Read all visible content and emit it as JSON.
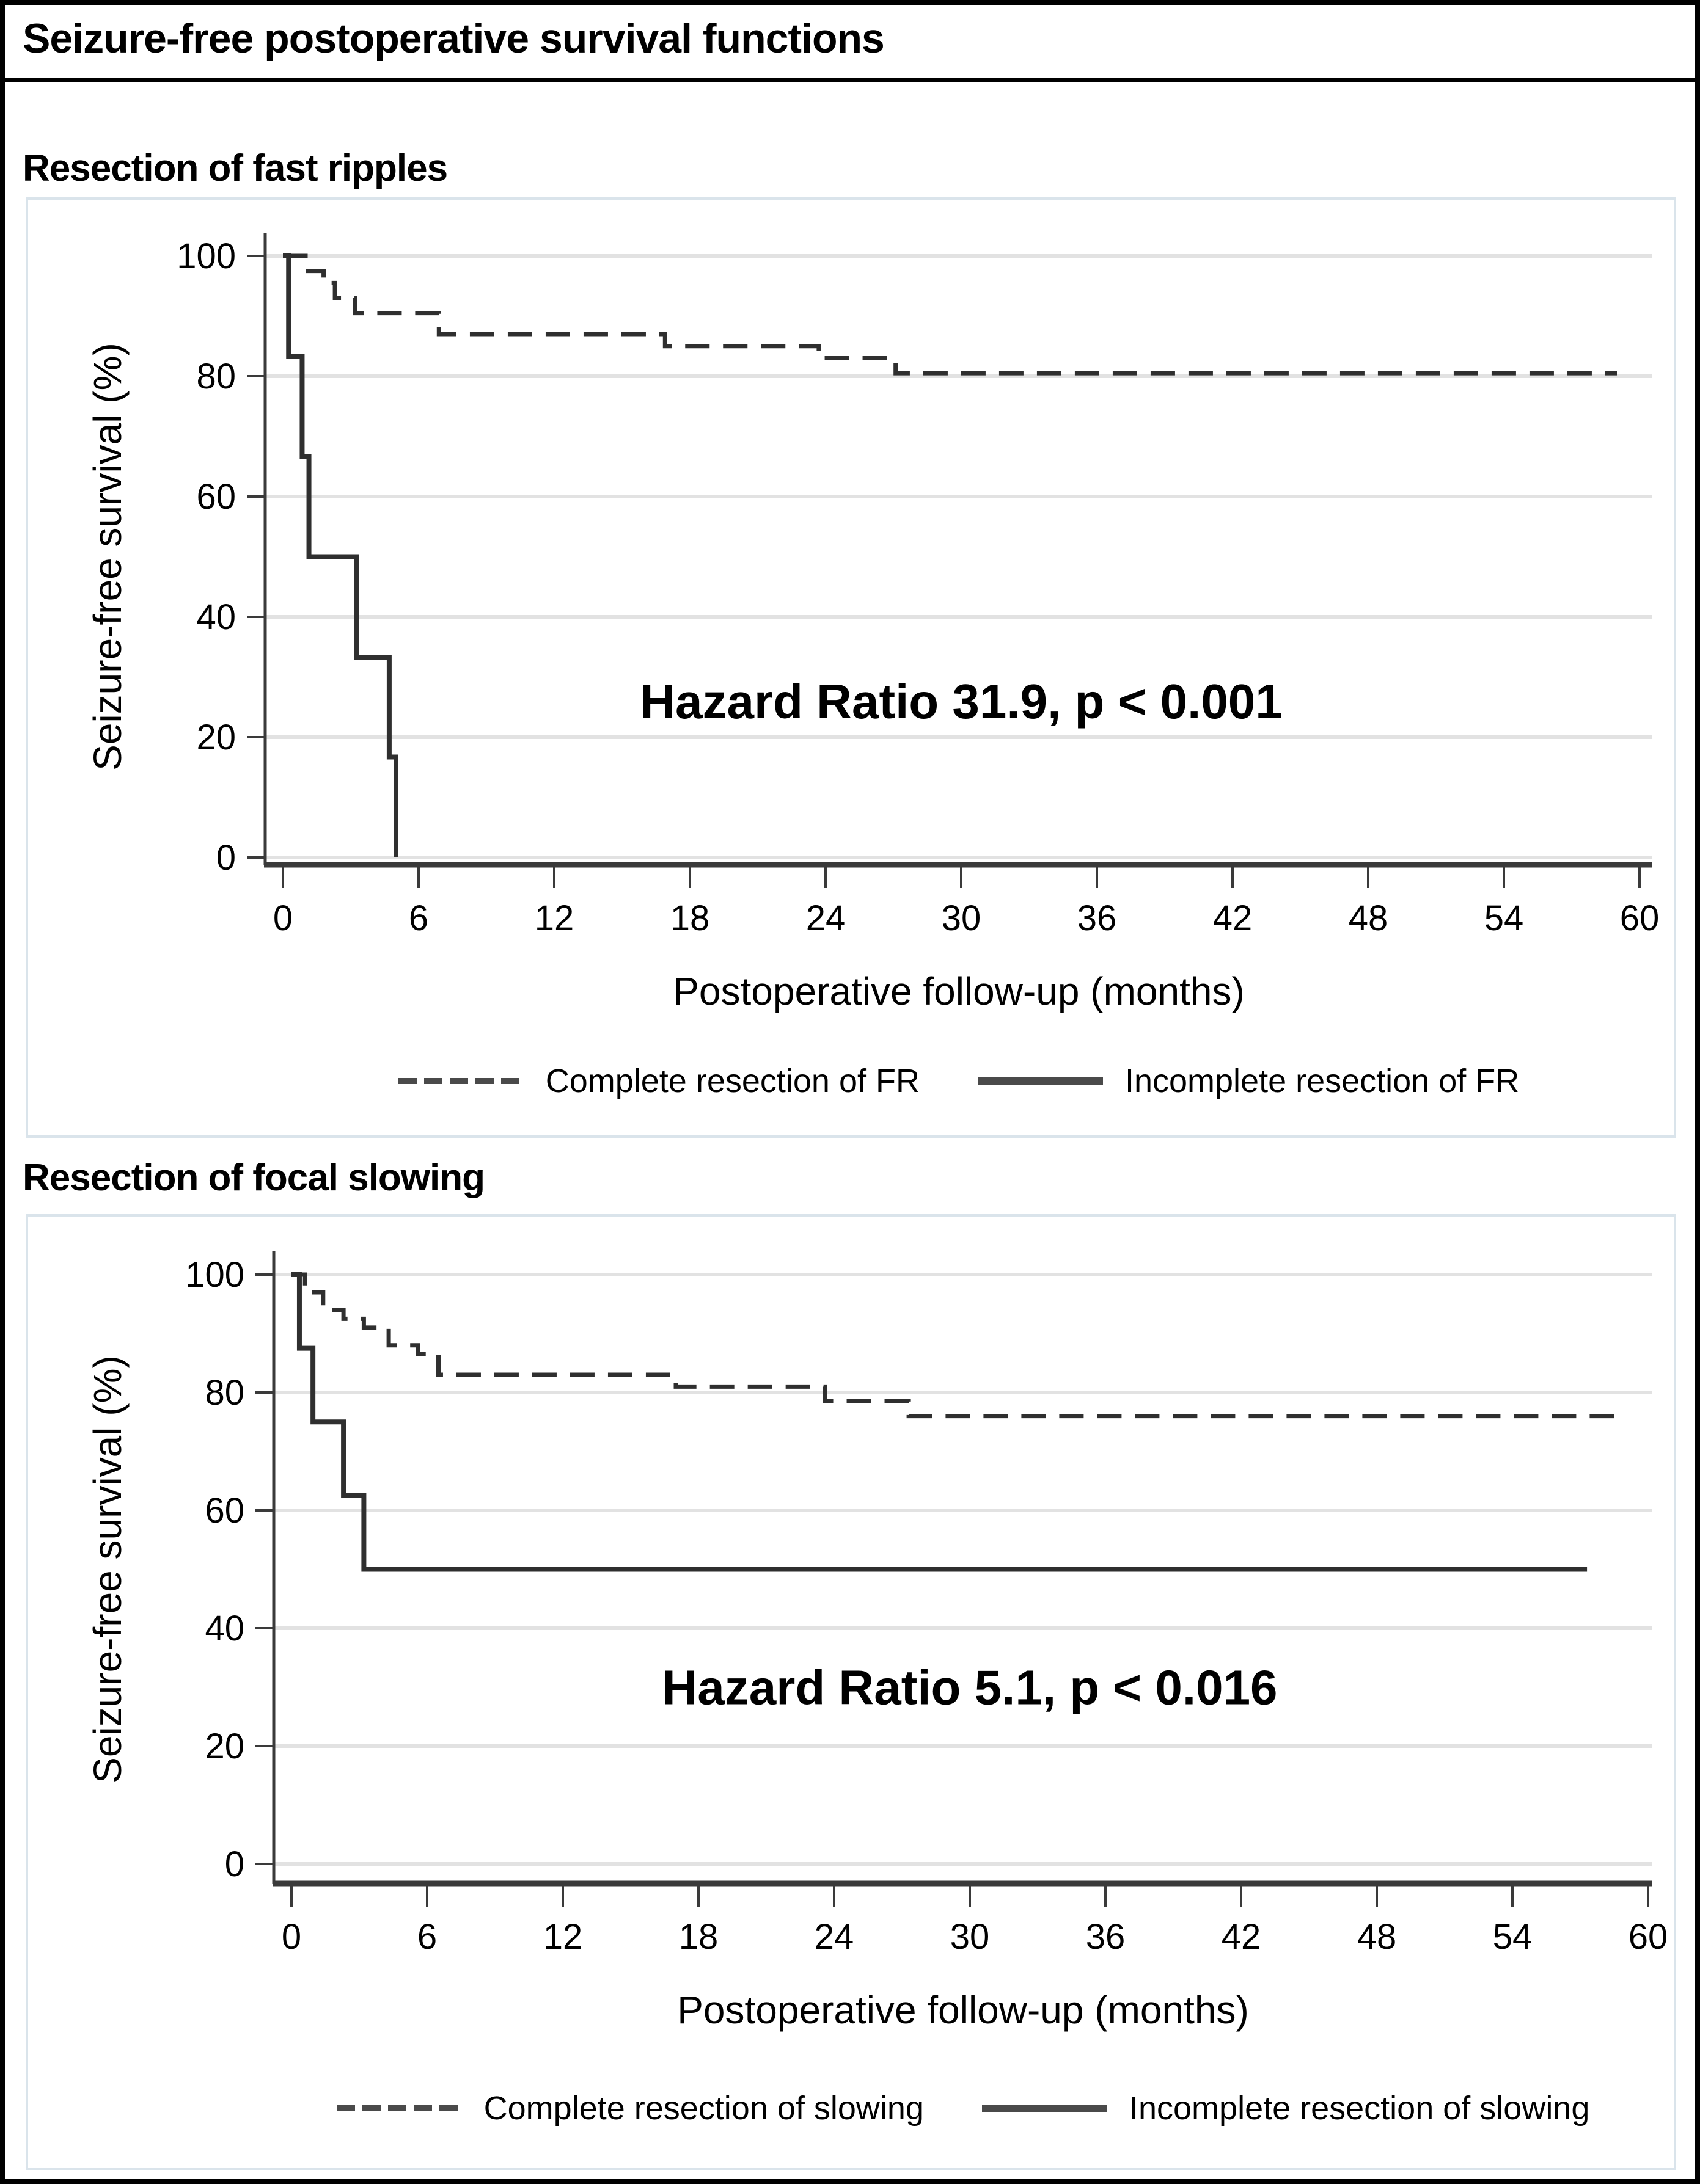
{
  "figure": {
    "title": "Seizure-free postoperative survival functions",
    "panels": [
      {
        "heading": "Resection of fast ripples"
      },
      {
        "heading": "Resection of focal slowing"
      }
    ]
  },
  "colors": {
    "curve": "#2f2f2f",
    "axis": "#3a3a3a",
    "grid": "#e2e2e2",
    "chart_border": "#dae4eb",
    "text": "#000000",
    "background": "#ffffff"
  },
  "chart_data": [
    {
      "type": "line",
      "subtype": "kaplan_meier_step",
      "title": "Resection of fast ripples",
      "xlabel": "Postoperative follow-up (months)",
      "ylabel": "Seizure-free survival (%)",
      "xlim": [
        0,
        60
      ],
      "ylim": [
        0,
        100
      ],
      "xticks": [
        0,
        6,
        12,
        18,
        24,
        30,
        36,
        42,
        48,
        54,
        60
      ],
      "yticks": [
        0,
        20,
        40,
        60,
        80,
        100
      ],
      "grid": "horizontal",
      "legend_position": "bottom",
      "annotation": {
        "text": "Hazard Ratio 31.9, p < 0.001",
        "x_month": 30,
        "y_percent": 26
      },
      "series": [
        {
          "name": "Complete resection of FR",
          "style": "dashed",
          "end_month": 59,
          "steps": [
            [
              0,
              100
            ],
            [
              1.0,
              97.5
            ],
            [
              1.8,
              95.5
            ],
            [
              2.3,
              93
            ],
            [
              3.2,
              90.5
            ],
            [
              6.9,
              87
            ],
            [
              16.9,
              85
            ],
            [
              23.7,
              83
            ],
            [
              27.1,
              80.5
            ]
          ]
        },
        {
          "name": "Incomplete resection of FR",
          "style": "solid",
          "end_month": 5.0,
          "steps": [
            [
              0,
              100
            ],
            [
              0.25,
              83.3
            ],
            [
              0.85,
              66.7
            ],
            [
              1.15,
              50
            ],
            [
              3.25,
              33.3
            ],
            [
              4.7,
              16.7
            ],
            [
              5.0,
              0
            ]
          ]
        }
      ]
    },
    {
      "type": "line",
      "subtype": "kaplan_meier_step",
      "title": "Resection of focal slowing",
      "xlabel": "Postoperative follow-up (months)",
      "ylabel": "Seizure-free survival (%)",
      "xlim": [
        0,
        60
      ],
      "ylim": [
        0,
        100
      ],
      "xticks": [
        0,
        6,
        12,
        18,
        24,
        30,
        36,
        42,
        48,
        54,
        60
      ],
      "yticks": [
        0,
        20,
        40,
        60,
        80,
        100
      ],
      "grid": "horizontal",
      "legend_position": "bottom",
      "annotation": {
        "text": "Hazard Ratio 5.1, p < 0.016",
        "x_month": 30,
        "y_percent": 30
      },
      "series": [
        {
          "name": "Complete resection of slowing",
          "style": "dashed",
          "end_month": 58.5,
          "steps": [
            [
              0,
              100
            ],
            [
              0.6,
              97
            ],
            [
              1.4,
              94
            ],
            [
              2.3,
              92.5
            ],
            [
              3.2,
              91
            ],
            [
              4.3,
              88
            ],
            [
              5.6,
              86.5
            ],
            [
              6.5,
              83
            ],
            [
              17.0,
              81
            ],
            [
              23.6,
              78.5
            ],
            [
              27.3,
              76
            ]
          ]
        },
        {
          "name": "Incomplete resection of slowing",
          "style": "solid",
          "end_month": 57.3,
          "steps": [
            [
              0,
              100
            ],
            [
              0.35,
              87.5
            ],
            [
              0.95,
              75
            ],
            [
              2.3,
              62.5
            ],
            [
              3.2,
              50
            ]
          ]
        }
      ]
    }
  ]
}
